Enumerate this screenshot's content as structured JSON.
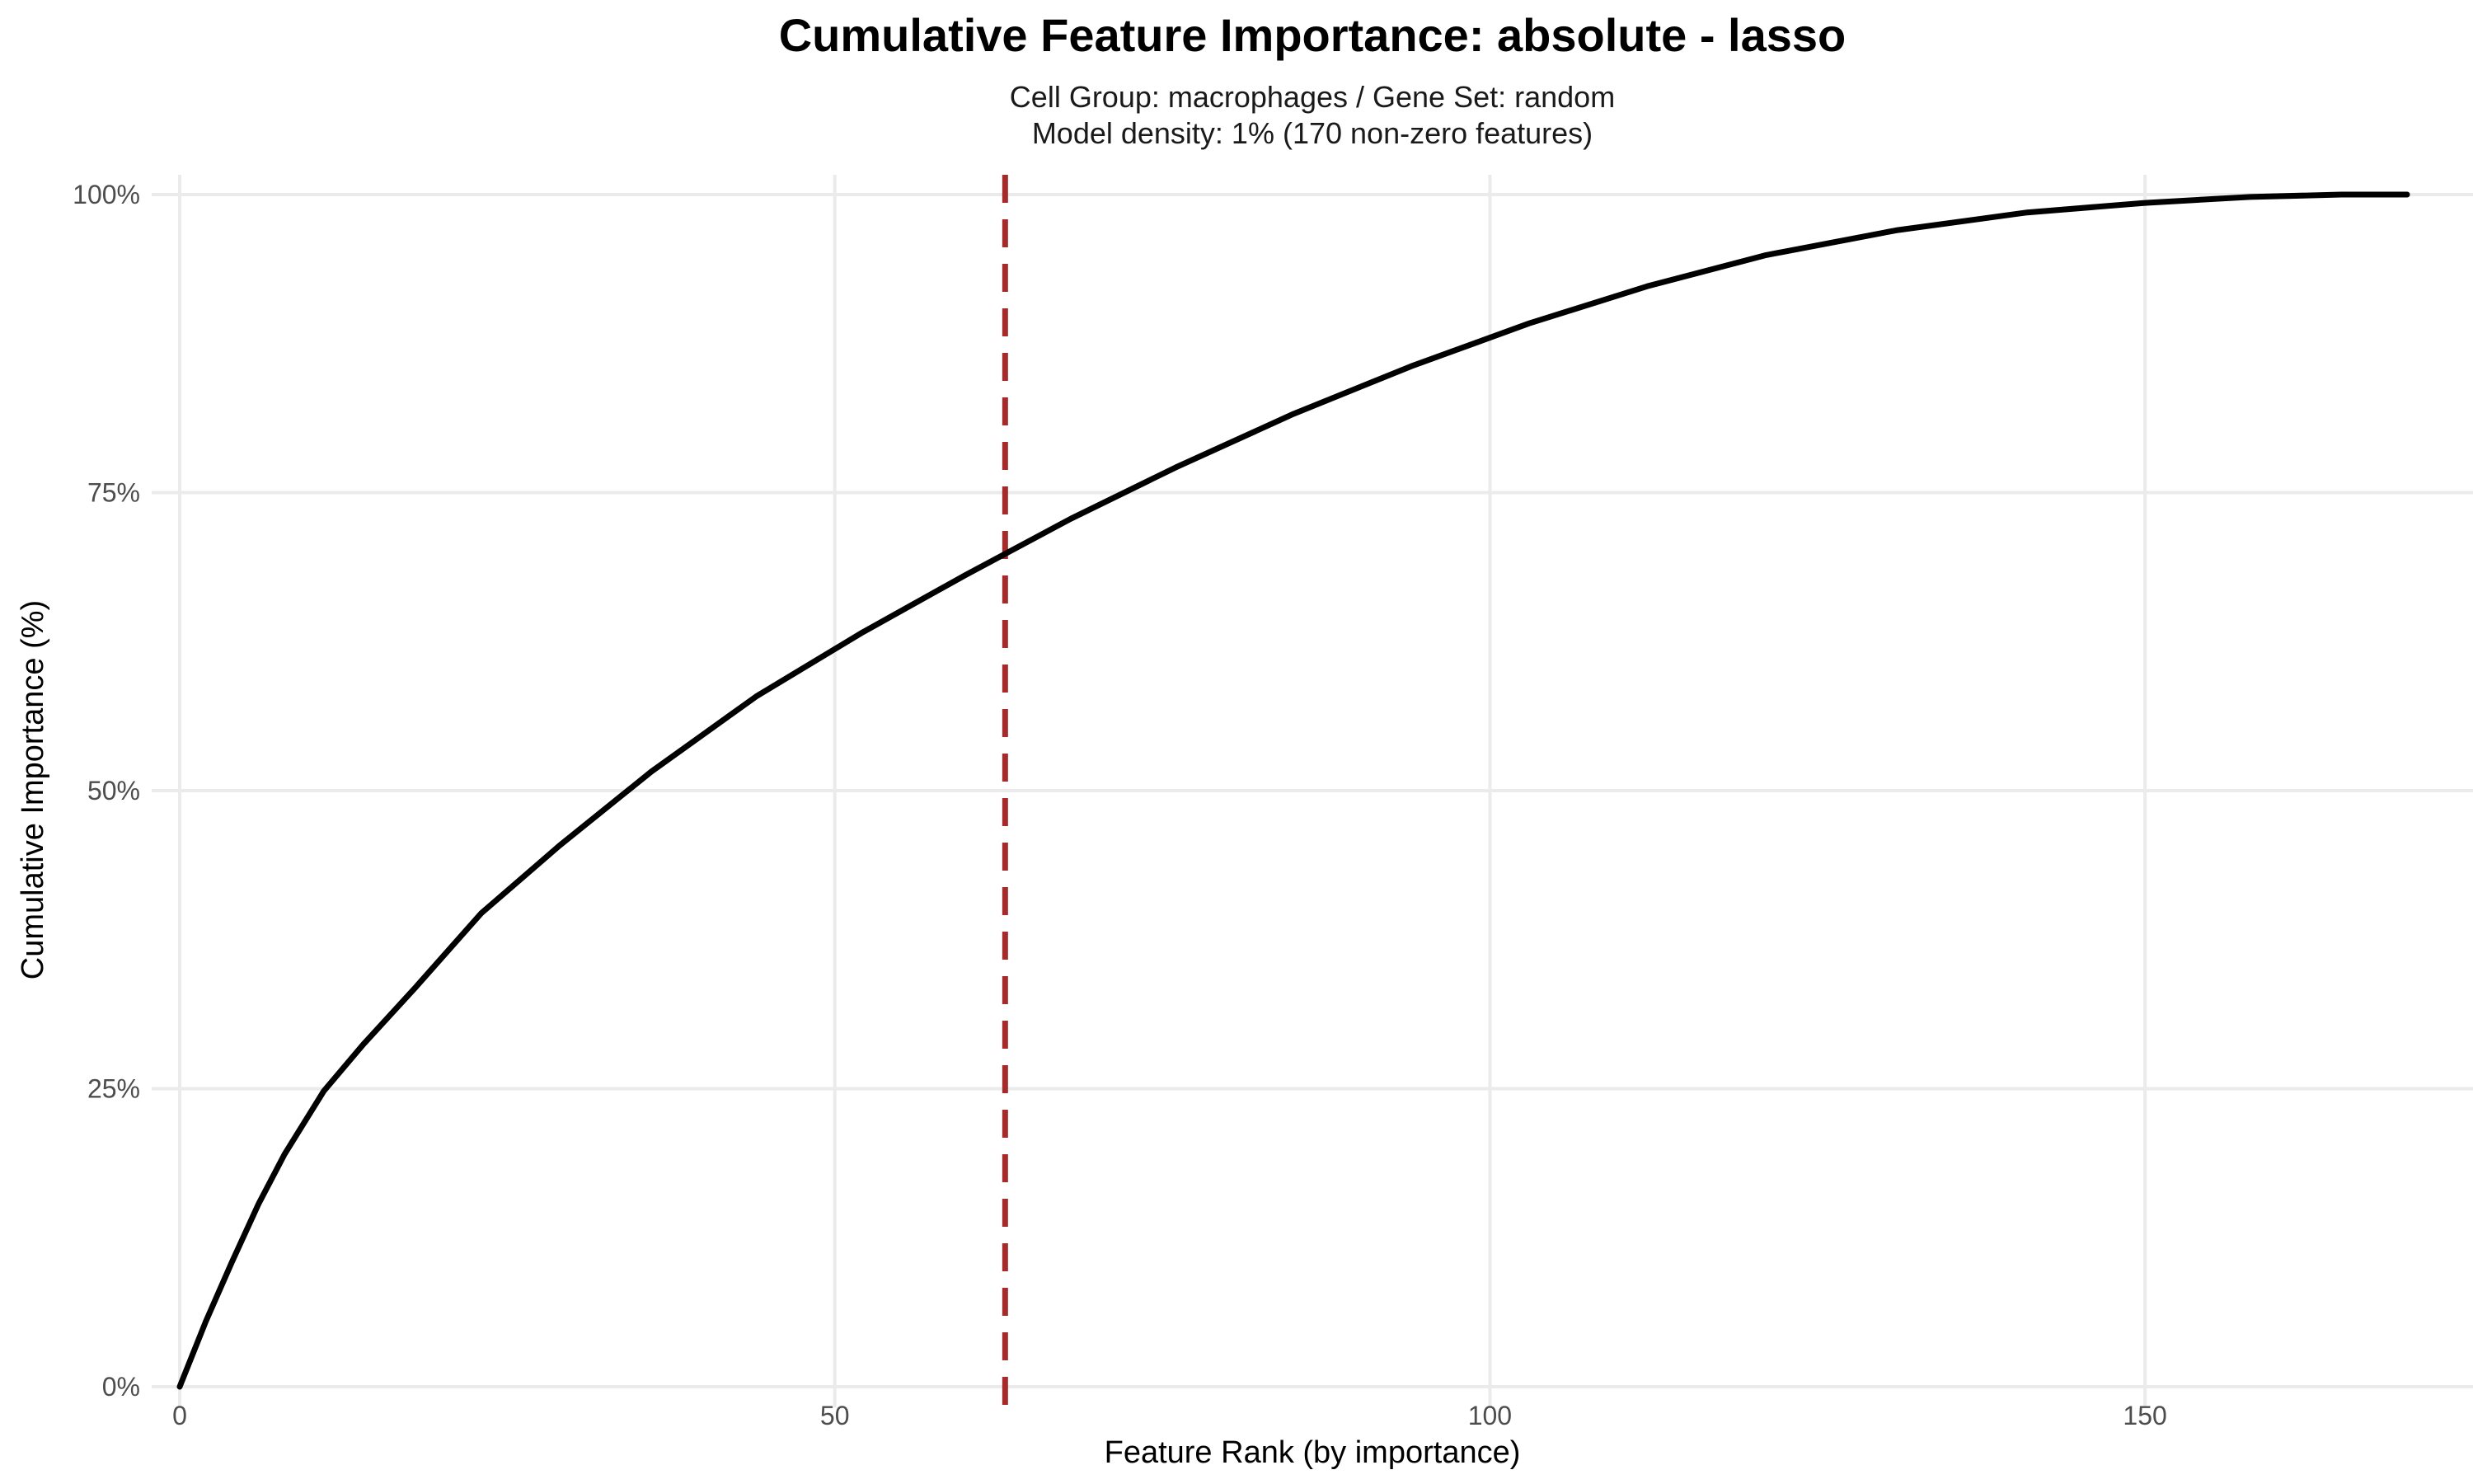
{
  "chart_data": {
    "type": "line",
    "title": "Cumulative Feature Importance: absolute - lasso",
    "subtitle_lines": [
      "Cell Group: macrophages / Gene Set: random",
      "Model density: 1% (170 non-zero features)"
    ],
    "xlabel": "Feature Rank (by importance)",
    "ylabel": "Cumulative Importance (%)",
    "xlim": [
      0,
      170
    ],
    "ylim": [
      0,
      100
    ],
    "x_ticks": [
      0,
      50,
      100,
      150
    ],
    "x_tick_labels": [
      "0",
      "50",
      "100",
      "150"
    ],
    "y_ticks": [
      0,
      25,
      50,
      75,
      100
    ],
    "y_tick_labels": [
      "0%",
      "25%",
      "50%",
      "75%",
      "100%"
    ],
    "grid": true,
    "series": [
      {
        "color": "#000000",
        "x": [
          0,
          2,
          4,
          6,
          8,
          11,
          14,
          18,
          23,
          29,
          36,
          44,
          52,
          60,
          68,
          76,
          85,
          94,
          103,
          112,
          121,
          131,
          141,
          150,
          158,
          165,
          170
        ],
        "y": [
          0,
          5.5,
          10.5,
          15.3,
          19.5,
          24.8,
          28.7,
          33.5,
          39.7,
          45.4,
          51.6,
          57.9,
          63.2,
          68.1,
          72.8,
          77.1,
          81.6,
          85.6,
          89.2,
          92.3,
          94.9,
          97.0,
          98.5,
          99.3,
          99.8,
          100,
          100
        ]
      }
    ],
    "vlines": [
      {
        "x": 63,
        "color": "#a52a2a",
        "style": "dashed"
      }
    ]
  }
}
